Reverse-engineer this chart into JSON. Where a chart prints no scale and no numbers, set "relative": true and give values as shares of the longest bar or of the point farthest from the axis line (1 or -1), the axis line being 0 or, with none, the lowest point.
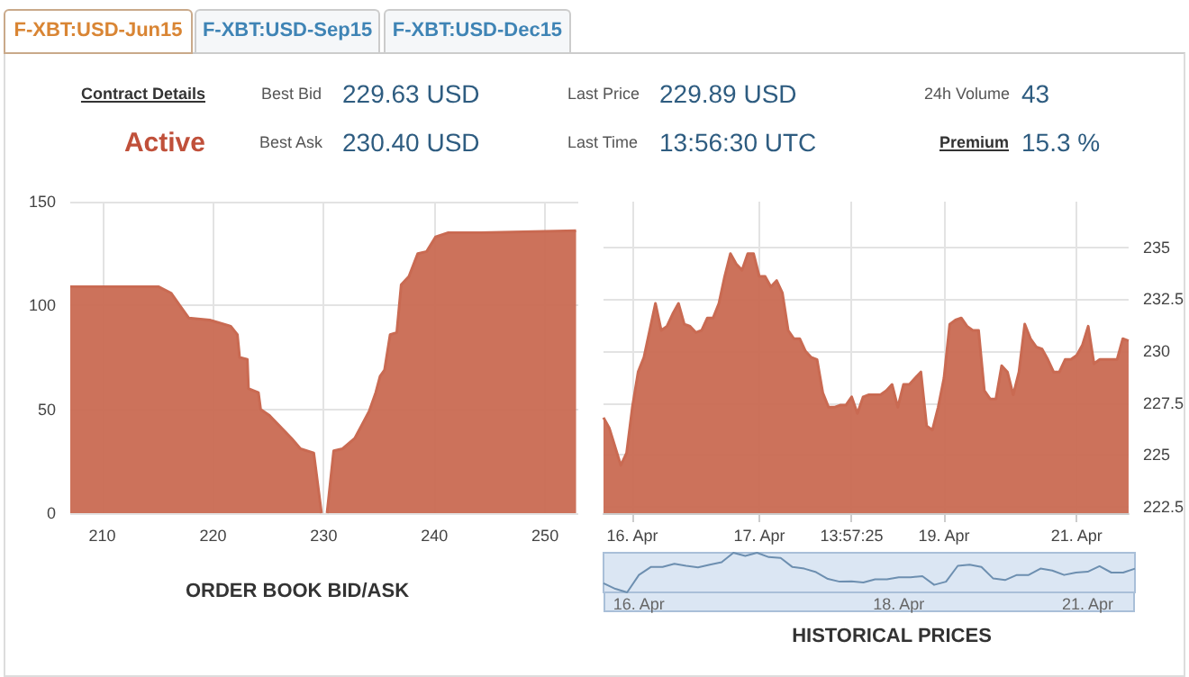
{
  "chart_data": [
    {
      "type": "other",
      "annotations": [
        "F-XBT:USD-Jun15",
        "F-XBT:USD-Sep15",
        "F-XBT:USD-Dec15",
        "Contract Details",
        "Best Bid",
        "229.63 USD",
        "Last Price",
        "229.89 USD",
        "24h Volume",
        "43",
        "Active",
        "Best Ask",
        "230.40 USD",
        "Last Time",
        "13:56:30 UTC",
        "Premium",
        "15.3 %"
      ]
    },
    {
      "type": "area",
      "title": "ORDER BOOK BID/ASK",
      "xlim": [
        207.1,
        253
      ],
      "xticks": [
        210,
        220,
        230,
        240,
        250
      ],
      "ylim": [
        0,
        150
      ],
      "yticks": [
        0,
        50,
        100,
        150
      ],
      "grid": true,
      "series": [
        {
          "color": "#c96a52",
          "x": [
            207.1,
            215.1,
            216.2,
            217.0,
            217.8,
            219.7,
            221.6,
            222.2,
            222.4,
            223.1,
            223.2,
            224.1,
            224.3,
            225.1,
            226.2,
            227.1,
            227.9,
            229.1,
            229.8
          ],
          "values": [
            109,
            109,
            106,
            100,
            94,
            93,
            90,
            86,
            75,
            74,
            60,
            58,
            50,
            47,
            41,
            36,
            31,
            29,
            0
          ]
        },
        {
          "color": "#c96a52",
          "x": [
            230.3,
            230.9,
            231.7,
            232.8,
            233.3,
            234.1,
            234.7,
            235.1,
            235.5,
            236.0,
            236.6,
            237.0,
            237.7,
            238.5,
            239.3,
            240.1,
            241.2,
            244.2,
            252.8
          ],
          "values": [
            0,
            30,
            31,
            36,
            41,
            49,
            58,
            66,
            69,
            86,
            87,
            110,
            114,
            125,
            126,
            133,
            135,
            135,
            136
          ]
        }
      ]
    },
    {
      "type": "area",
      "title": "HISTORICAL PRICES",
      "color": "#c96a52",
      "ylim": [
        222.2,
        237.2
      ],
      "yticks": [
        222.5,
        225,
        227.5,
        230,
        232.5,
        235
      ],
      "grid": true,
      "categories": [
        null,
        null,
        null,
        null,
        null,
        "16. Apr",
        null,
        null,
        null,
        null,
        null,
        null,
        null,
        null,
        null,
        null,
        null,
        null,
        null,
        null,
        null,
        null,
        null,
        null,
        null,
        null,
        null,
        "17. Apr",
        null,
        null,
        null,
        null,
        null,
        null,
        null,
        null,
        null,
        null,
        null,
        null,
        null,
        null,
        null,
        "13:57:25",
        null,
        null,
        null,
        null,
        null,
        null,
        null,
        null,
        null,
        null,
        null,
        null,
        null,
        null,
        null,
        "19. Apr",
        null,
        null,
        null,
        null,
        null,
        null,
        null,
        null,
        null,
        null,
        null,
        null,
        null,
        null,
        null,
        null,
        null,
        null,
        null,
        null,
        null,
        null,
        "21. Apr",
        null,
        null,
        null,
        null,
        null,
        null,
        null,
        null,
        null
      ],
      "values": [
        226.8,
        226.3,
        225.4,
        224.5,
        225.1,
        227.3,
        229.0,
        229.7,
        231.0,
        232.3,
        231.0,
        231.2,
        231.8,
        232.3,
        231.3,
        231.2,
        230.9,
        231.0,
        231.6,
        231.6,
        232.3,
        233.6,
        234.7,
        234.2,
        233.9,
        234.7,
        234.7,
        233.6,
        233.6,
        233.1,
        233.4,
        232.8,
        231.0,
        230.6,
        230.6,
        230.0,
        229.7,
        229.6,
        228.0,
        227.3,
        227.3,
        227.4,
        227.4,
        227.8,
        227.0,
        227.8,
        227.9,
        227.9,
        227.9,
        228.1,
        228.4,
        227.3,
        228.4,
        228.4,
        228.7,
        229.0,
        226.4,
        226.2,
        227.3,
        228.7,
        231.3,
        231.5,
        231.6,
        231.2,
        231.0,
        231.0,
        228.1,
        227.7,
        227.7,
        229.3,
        229.0,
        227.9,
        229.0,
        231.3,
        230.6,
        230.2,
        230.1,
        229.6,
        229.0,
        229.0,
        229.6,
        229.6,
        229.8,
        230.3,
        231.2,
        229.4,
        229.6,
        229.6,
        229.6,
        229.6,
        230.6,
        230.5
      ]
    },
    {
      "type": "line",
      "relative": true,
      "tick_labels": "x",
      "color": "#6d8fb0",
      "categories": [
        null,
        null,
        null,
        "16. Apr",
        null,
        null,
        null,
        null,
        null,
        null,
        null,
        null,
        null,
        null,
        null,
        null,
        null,
        null,
        null,
        null,
        null,
        null,
        null,
        null,
        null,
        "18. Apr",
        null,
        null,
        null,
        null,
        null,
        null,
        null,
        null,
        null,
        null,
        null,
        null,
        null,
        null,
        null,
        "21. Apr",
        null,
        null,
        null,
        null
      ],
      "values": [
        0.23,
        0.09,
        0,
        0.44,
        0.64,
        0.64,
        0.72,
        0.67,
        0.63,
        0.7,
        0.76,
        1,
        0.92,
        1,
        0.89,
        0.87,
        0.64,
        0.6,
        0.51,
        0.34,
        0.27,
        0.28,
        0.25,
        0.33,
        0.33,
        0.38,
        0.38,
        0.41,
        0.19,
        0.27,
        0.67,
        0.7,
        0.64,
        0.35,
        0.31,
        0.44,
        0.44,
        0.6,
        0.55,
        0.44,
        0.5,
        0.52,
        0.66,
        0.5,
        0.5,
        0.6
      ]
    }
  ]
}
